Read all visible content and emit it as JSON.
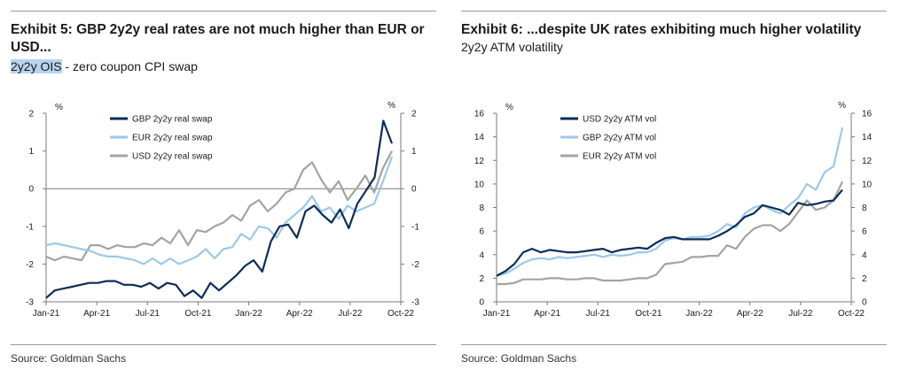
{
  "exhibit5": {
    "title": "Exhibit 5: GBP 2y2y real rates are not much higher than EUR or USD...",
    "subtitle_highlight": "2y2y OIS",
    "subtitle_rest": " - zero coupon CPI swap",
    "source": "Source: Goldman Sachs"
  },
  "exhibit6": {
    "title": "Exhibit 6: ...despite UK rates exhibiting much higher volatility",
    "subtitle": "2y2y ATM volatility",
    "source": "Source: Goldman Sachs"
  },
  "colors": {
    "dark_navy": "#0b2d55",
    "light_blue": "#9cc8ea",
    "grey": "#a3a3a3"
  },
  "chart_data": [
    {
      "id": "exhibit5",
      "type": "line",
      "unit_left": "%",
      "unit_right": "%",
      "x_tick_labels": [
        "Jan-21",
        "Apr-21",
        "Jul-21",
        "Oct-21",
        "Jan-22",
        "Apr-22",
        "Jul-22",
        "Oct-22"
      ],
      "ylim": [
        -3,
        2
      ],
      "y_ticks": [
        -3,
        -2,
        -1,
        0,
        1,
        2
      ],
      "y_tick_labels": [
        "-3",
        "-2",
        "-1",
        "0",
        "1",
        "2"
      ],
      "legend_position": "top-center",
      "series": [
        {
          "name": "GBP 2y2y real swap",
          "color": "#0b2d55",
          "values": [
            -2.9,
            -2.7,
            -2.65,
            -2.6,
            -2.55,
            -2.5,
            -2.5,
            -2.45,
            -2.45,
            -2.55,
            -2.55,
            -2.6,
            -2.5,
            -2.65,
            -2.5,
            -2.55,
            -2.85,
            -2.7,
            -2.9,
            -2.5,
            -2.7,
            -2.5,
            -2.3,
            -2.05,
            -1.9,
            -2.2,
            -1.4,
            -1.0,
            -0.95,
            -1.3,
            -0.6,
            -0.45,
            -0.7,
            -0.9,
            -0.55,
            -1.05,
            -0.4,
            -0.05,
            0.3,
            1.8,
            1.2
          ]
        },
        {
          "name": "EUR 2y2y real swap",
          "color": "#9cc8ea",
          "values": [
            -1.5,
            -1.45,
            -1.5,
            -1.55,
            -1.6,
            -1.65,
            -1.75,
            -1.8,
            -1.8,
            -1.85,
            -1.9,
            -2.0,
            -1.85,
            -2.0,
            -1.85,
            -2.0,
            -1.9,
            -1.8,
            -1.6,
            -1.85,
            -1.6,
            -1.55,
            -1.2,
            -1.35,
            -1.0,
            -1.05,
            -1.3,
            -0.9,
            -0.7,
            -0.5,
            -0.2,
            -0.6,
            -0.5,
            -0.8,
            -0.45,
            -0.6,
            -0.5,
            -0.4,
            0.2,
            0.85
          ]
        },
        {
          "name": "USD 2y2y real swap",
          "color": "#a3a3a3",
          "values": [
            -1.8,
            -1.9,
            -1.8,
            -1.85,
            -1.9,
            -1.5,
            -1.5,
            -1.6,
            -1.5,
            -1.55,
            -1.55,
            -1.45,
            -1.5,
            -1.3,
            -1.45,
            -1.1,
            -1.5,
            -1.1,
            -1.15,
            -1.0,
            -0.9,
            -0.7,
            -0.85,
            -0.45,
            -0.3,
            -0.6,
            -0.4,
            -0.1,
            0.0,
            0.5,
            0.7,
            0.25,
            -0.1,
            0.2,
            -0.3,
            0.0,
            0.35,
            -0.1,
            0.55,
            1.0
          ]
        }
      ]
    },
    {
      "id": "exhibit6",
      "type": "line",
      "unit_left": "%",
      "unit_right": "%",
      "x_tick_labels": [
        "Jan-21",
        "Apr-21",
        "Jul-21",
        "Oct-21",
        "Jan-22",
        "Apr-22",
        "Jul-22",
        "Oct-22"
      ],
      "ylim": [
        0,
        16
      ],
      "y_ticks": [
        0,
        2,
        4,
        6,
        8,
        10,
        12,
        14,
        16
      ],
      "y_tick_labels": [
        "0",
        "2",
        "4",
        "6",
        "8",
        "10",
        "12",
        "14",
        "16"
      ],
      "legend_position": "top-center",
      "series": [
        {
          "name": "USD 2y2y ATM vol",
          "color": "#0b2d55",
          "values": [
            2.2,
            2.6,
            3.2,
            4.2,
            4.5,
            4.2,
            4.4,
            4.3,
            4.2,
            4.2,
            4.3,
            4.4,
            4.5,
            4.2,
            4.4,
            4.5,
            4.6,
            4.5,
            5.0,
            5.4,
            5.5,
            5.3,
            5.3,
            5.3,
            5.3,
            5.6,
            6.0,
            6.5,
            7.2,
            7.5,
            8.2,
            8.0,
            7.8,
            7.4,
            8.4,
            8.2,
            8.3,
            8.5,
            8.6,
            9.5
          ]
        },
        {
          "name": "GBP 2y2y ATM vol",
          "color": "#9cc8ea",
          "values": [
            2.2,
            2.4,
            2.8,
            3.3,
            3.6,
            3.7,
            3.6,
            3.8,
            3.7,
            3.8,
            3.9,
            4.0,
            3.8,
            4.0,
            3.9,
            4.0,
            4.2,
            4.2,
            4.5,
            5.2,
            5.4,
            5.3,
            5.5,
            5.5,
            5.6,
            6.0,
            6.6,
            6.3,
            7.5,
            8.0,
            8.2,
            7.8,
            7.5,
            8.2,
            8.8,
            10.0,
            9.5,
            11.0,
            11.5,
            14.8
          ]
        },
        {
          "name": "EUR 2y2y ATM vol",
          "color": "#a3a3a3",
          "values": [
            1.5,
            1.5,
            1.6,
            1.9,
            1.9,
            1.9,
            2.0,
            2.0,
            1.9,
            1.9,
            2.0,
            2.0,
            1.8,
            1.8,
            1.8,
            1.9,
            2.0,
            2.0,
            2.3,
            3.2,
            3.3,
            3.4,
            3.8,
            3.8,
            3.9,
            3.9,
            4.8,
            4.5,
            5.5,
            6.2,
            6.5,
            6.5,
            6.0,
            6.6,
            7.6,
            8.6,
            7.8,
            8.0,
            8.6,
            10.2
          ]
        }
      ]
    }
  ]
}
